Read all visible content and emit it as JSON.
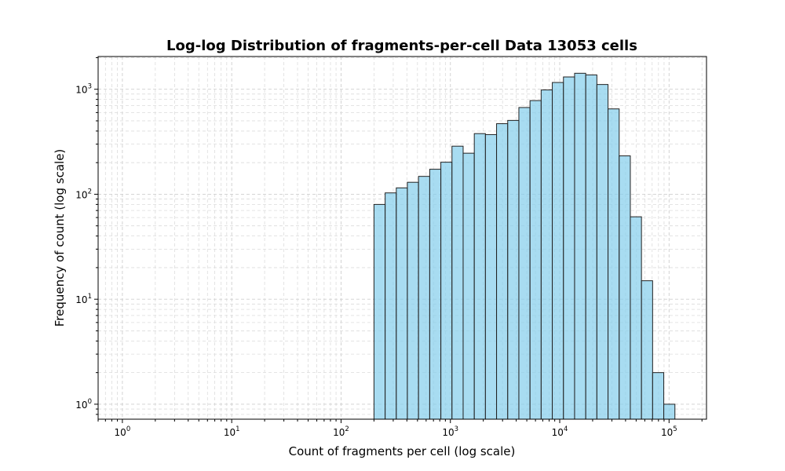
{
  "chart_data": {
    "type": "bar",
    "title": "Log-log Distribution of fragments-per-cell Data 13053 cells",
    "xlabel": "Count of fragments per cell (log scale)",
    "ylabel": "Frequency of count (log scale)",
    "x_scale": "log",
    "y_scale": "log",
    "xlim": [
      0.6,
      220000
    ],
    "ylim": [
      0.72,
      2050
    ],
    "grid": true,
    "bar_color": "#87ceeb",
    "bar_edge_color": "#222222",
    "x_ticks": [
      {
        "base": "10",
        "exp": "0",
        "value": 1
      },
      {
        "base": "10",
        "exp": "1",
        "value": 10
      },
      {
        "base": "10",
        "exp": "2",
        "value": 100
      },
      {
        "base": "10",
        "exp": "3",
        "value": 1000
      },
      {
        "base": "10",
        "exp": "4",
        "value": 10000
      },
      {
        "base": "10",
        "exp": "5",
        "value": 100000
      }
    ],
    "y_ticks": [
      {
        "base": "10",
        "exp": "0",
        "value": 1
      },
      {
        "base": "10",
        "exp": "1",
        "value": 10
      },
      {
        "base": "10",
        "exp": "2",
        "value": 100
      },
      {
        "base": "10",
        "exp": "3",
        "value": 1000
      }
    ],
    "bins": [
      {
        "x0": 200,
        "x1": 253,
        "count": 80
      },
      {
        "x0": 253,
        "x1": 320,
        "count": 103
      },
      {
        "x0": 320,
        "x1": 404,
        "count": 115
      },
      {
        "x0": 404,
        "x1": 511,
        "count": 130
      },
      {
        "x0": 511,
        "x1": 647,
        "count": 148
      },
      {
        "x0": 647,
        "x1": 818,
        "count": 173
      },
      {
        "x0": 818,
        "x1": 1034,
        "count": 202
      },
      {
        "x0": 1034,
        "x1": 1308,
        "count": 287
      },
      {
        "x0": 1308,
        "x1": 1654,
        "count": 246
      },
      {
        "x0": 1654,
        "x1": 2091,
        "count": 378
      },
      {
        "x0": 2091,
        "x1": 2644,
        "count": 370
      },
      {
        "x0": 2644,
        "x1": 3344,
        "count": 470
      },
      {
        "x0": 3344,
        "x1": 4229,
        "count": 505
      },
      {
        "x0": 4229,
        "x1": 5348,
        "count": 670
      },
      {
        "x0": 5348,
        "x1": 6763,
        "count": 780
      },
      {
        "x0": 6763,
        "x1": 8552,
        "count": 985
      },
      {
        "x0": 8552,
        "x1": 10815,
        "count": 1160
      },
      {
        "x0": 10815,
        "x1": 13676,
        "count": 1310
      },
      {
        "x0": 13676,
        "x1": 17295,
        "count": 1420
      },
      {
        "x0": 17295,
        "x1": 21871,
        "count": 1370
      },
      {
        "x0": 21871,
        "x1": 27657,
        "count": 1110
      },
      {
        "x0": 27657,
        "x1": 34975,
        "count": 650
      },
      {
        "x0": 34975,
        "x1": 44228,
        "count": 232
      },
      {
        "x0": 44228,
        "x1": 55930,
        "count": 61
      },
      {
        "x0": 55930,
        "x1": 70727,
        "count": 15
      },
      {
        "x0": 70727,
        "x1": 89440,
        "count": 2
      },
      {
        "x0": 89440,
        "x1": 113104,
        "count": 1
      }
    ]
  }
}
